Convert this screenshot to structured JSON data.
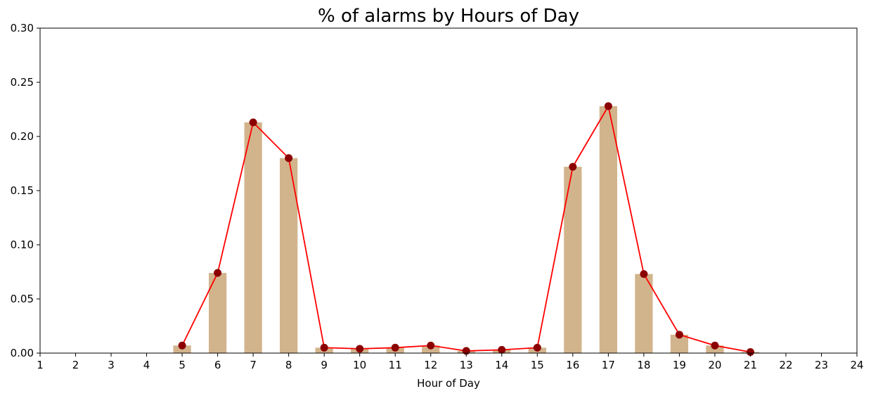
{
  "chart_data": {
    "type": "bar",
    "title": "% of alarms by Hours of Day",
    "xlabel": "Hour of Day",
    "ylabel": "",
    "xlim": [
      1,
      24
    ],
    "ylim": [
      0,
      0.3
    ],
    "x_ticks": [
      "1",
      "2",
      "3",
      "4",
      "5",
      "6",
      "7",
      "8",
      "9",
      "10",
      "11",
      "12",
      "13",
      "14",
      "15",
      "16",
      "17",
      "18",
      "19",
      "20",
      "21",
      "22",
      "23",
      "24"
    ],
    "y_ticks": [
      "0.00",
      "0.05",
      "0.10",
      "0.15",
      "0.20",
      "0.25",
      "0.30"
    ],
    "categories": [
      5,
      6,
      7,
      8,
      9,
      10,
      11,
      12,
      13,
      14,
      15,
      16,
      17,
      18,
      19,
      20,
      21
    ],
    "series": [
      {
        "type": "bar",
        "color": "#d2b48c",
        "values": [
          0.007,
          0.074,
          0.213,
          0.18,
          0.005,
          0.004,
          0.005,
          0.007,
          0.002,
          0.003,
          0.005,
          0.172,
          0.228,
          0.073,
          0.017,
          0.007,
          0.001
        ]
      },
      {
        "type": "line",
        "color": "#ff0000",
        "marker_color": "#8b0000",
        "values": [
          0.007,
          0.074,
          0.213,
          0.18,
          0.005,
          0.004,
          0.005,
          0.007,
          0.002,
          0.003,
          0.005,
          0.172,
          0.228,
          0.073,
          0.017,
          0.007,
          0.001
        ]
      }
    ],
    "grid": false,
    "legend": "none"
  }
}
